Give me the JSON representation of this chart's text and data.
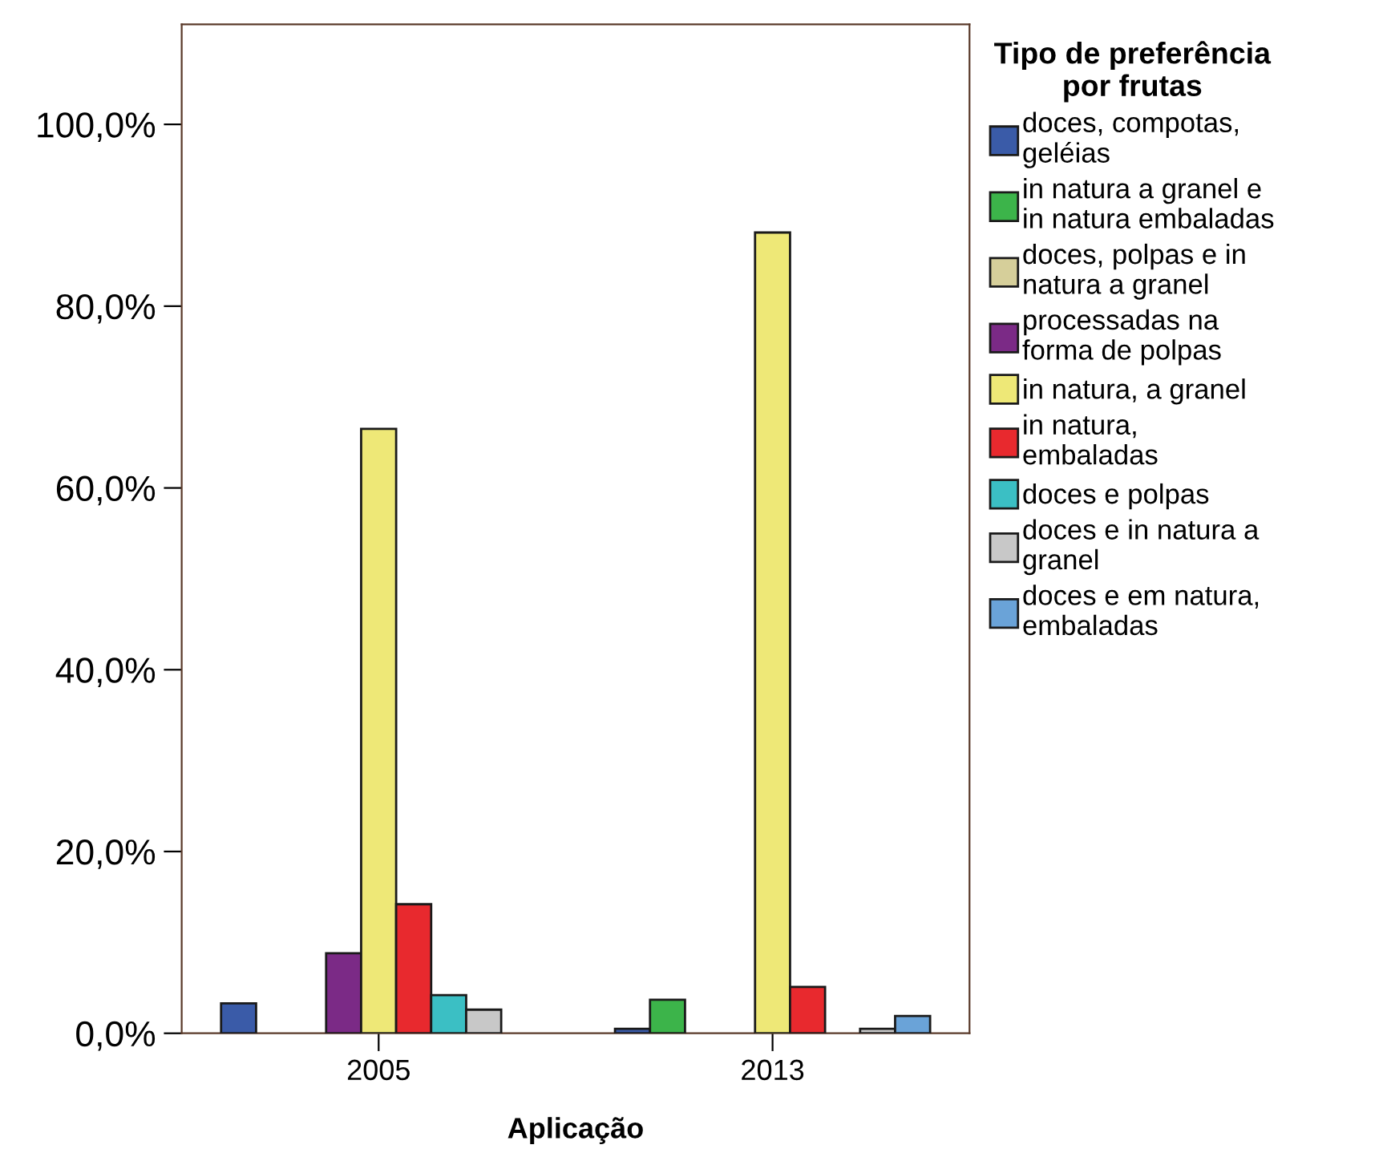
{
  "chart_data": {
    "type": "bar",
    "categories": [
      "2005",
      "2013"
    ],
    "xlabel": "Aplicação",
    "legend_title": "Tipo de preferência\npor frutas",
    "legend": "right",
    "ylim": [
      0,
      111
    ],
    "yticks": [
      {
        "value": 0,
        "label": "0,0%"
      },
      {
        "value": 20,
        "label": "20,0%"
      },
      {
        "value": 40,
        "label": "40,0%"
      },
      {
        "value": 60,
        "label": "60,0%"
      },
      {
        "value": 80,
        "label": "80,0%"
      },
      {
        "value": 100,
        "label": "100,0%"
      }
    ],
    "series": [
      {
        "name": "doces, compotas,\ngeléias",
        "color": "#3a5ba8",
        "values": [
          3.3,
          0.5
        ]
      },
      {
        "name": "in natura a granel e\nin natura embaladas",
        "color": "#3cb44a",
        "values": [
          null,
          3.7
        ]
      },
      {
        "name": "doces, polpas e in\nnatura a granel",
        "color": "#d6cf9a",
        "values": [
          null,
          null
        ]
      },
      {
        "name": "processadas na\nforma de polpas",
        "color": "#7b2a86",
        "values": [
          8.8,
          null
        ]
      },
      {
        "name": "in natura, a granel",
        "color": "#eee877",
        "values": [
          66.5,
          88.1
        ]
      },
      {
        "name": "in natura,\nembaladas",
        "color": "#e8292e",
        "values": [
          14.2,
          5.1
        ]
      },
      {
        "name": "doces e polpas",
        "color": "#3bbfc4",
        "values": [
          4.2,
          null
        ]
      },
      {
        "name": "doces e in natura a\ngranel",
        "color": "#c8c8c8",
        "values": [
          2.6,
          0.5
        ]
      },
      {
        "name": "doces e em natura,\nembaladas",
        "color": "#6aa3d8",
        "values": [
          null,
          1.9
        ]
      }
    ]
  }
}
